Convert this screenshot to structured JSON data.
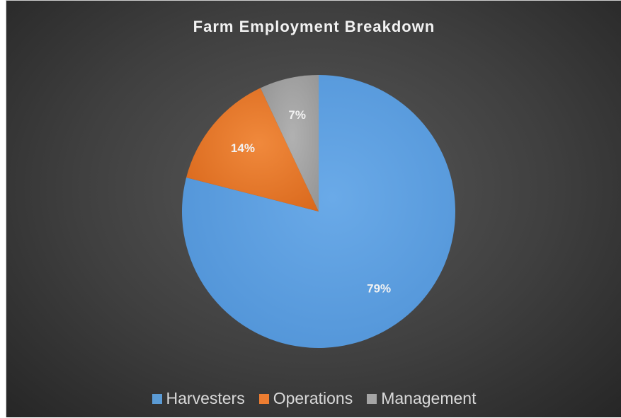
{
  "chart_data": {
    "type": "pie",
    "title": "Farm Employment Breakdown",
    "categories": [
      "Harvesters",
      "Operations",
      "Management"
    ],
    "values": [
      79,
      14,
      7
    ],
    "labels": [
      "79%",
      "14%",
      "7%"
    ],
    "colors": [
      "#5b9bd5",
      "#ed7d31",
      "#a5a5a5"
    ],
    "legend_position": "bottom"
  }
}
